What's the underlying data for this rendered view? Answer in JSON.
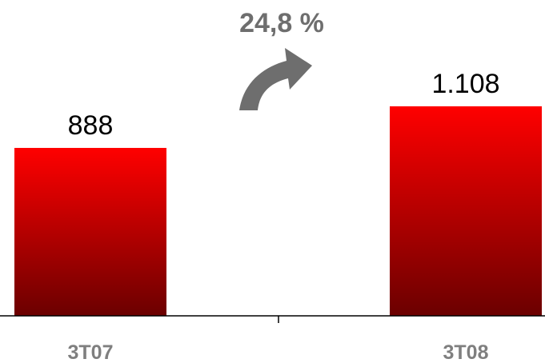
{
  "chart_data": {
    "type": "bar",
    "categories": [
      "3T07",
      "3T08"
    ],
    "values": [
      888,
      1108
    ],
    "value_labels": [
      "888",
      "1.108"
    ],
    "annotation": "24,8 %",
    "colors": {
      "bar_top": "#ff0000",
      "bar_bottom": "#6b0000",
      "arrow": "#6e6e6e",
      "category_text": "#7f7f7f"
    },
    "icons": [
      "curved-arrow-icon"
    ],
    "grid": false,
    "legend": "none"
  }
}
